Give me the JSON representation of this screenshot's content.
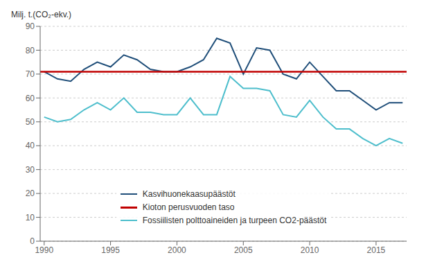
{
  "chart_data": {
    "type": "line",
    "ylabel": "Milj. t.(CO₂-ekv.)",
    "x": [
      1990,
      1991,
      1992,
      1993,
      1994,
      1995,
      1996,
      1997,
      1998,
      1999,
      2000,
      2001,
      2002,
      2003,
      2004,
      2005,
      2006,
      2007,
      2008,
      2009,
      2010,
      2011,
      2012,
      2013,
      2014,
      2015,
      2016,
      2017
    ],
    "series": [
      {
        "name": "Kasvihuonekaasupäästöt",
        "color": "#1F4E79",
        "values": [
          71,
          68,
          67,
          72,
          75,
          73,
          78,
          76,
          72,
          71,
          71,
          73,
          76,
          85,
          83,
          70,
          81,
          80,
          70,
          68,
          75,
          69,
          63,
          63,
          59,
          55,
          58,
          58
        ]
      },
      {
        "name": "Kioton perusvuoden taso",
        "color": "#C00000",
        "type": "hline",
        "value": 71
      },
      {
        "name": "Fossiilisten polttoaineiden ja turpeen CO2-päästöt",
        "color": "#4DBECC",
        "values": [
          52,
          50,
          51,
          55,
          58,
          55,
          60,
          54,
          54,
          53,
          53,
          60,
          53,
          53,
          69,
          64,
          64,
          63,
          53,
          52,
          59,
          52,
          47,
          47,
          43,
          40,
          43,
          41
        ]
      }
    ],
    "xlim": [
      1989.7,
      2017.3
    ],
    "xticks": [
      1990,
      1995,
      2000,
      2005,
      2010,
      2015
    ],
    "ylim": [
      0,
      90
    ],
    "yticks": [
      0,
      10,
      20,
      30,
      40,
      50,
      60,
      70,
      80,
      90
    ],
    "grid": true,
    "legend": "lower center"
  }
}
